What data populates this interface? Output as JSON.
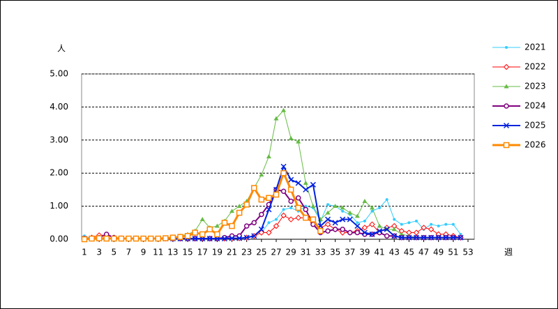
{
  "chart_data": {
    "type": "line",
    "x_label": "週",
    "y_label": "人",
    "x": [
      1,
      2,
      3,
      4,
      5,
      6,
      7,
      8,
      9,
      10,
      11,
      12,
      13,
      14,
      15,
      16,
      17,
      18,
      19,
      20,
      21,
      22,
      23,
      24,
      25,
      26,
      27,
      28,
      29,
      30,
      31,
      32,
      33,
      34,
      35,
      36,
      37,
      38,
      39,
      40,
      41,
      42,
      43,
      44,
      45,
      46,
      47,
      48,
      49,
      50,
      51,
      52
    ],
    "xlim": [
      1,
      53
    ],
    "xticks": [
      1,
      3,
      5,
      7,
      9,
      11,
      13,
      15,
      17,
      19,
      21,
      23,
      25,
      27,
      29,
      31,
      33,
      35,
      37,
      39,
      41,
      43,
      45,
      47,
      49,
      51,
      53
    ],
    "ylim": [
      0,
      5
    ],
    "yticks": [
      {
        "value": 0,
        "label": "0.00"
      },
      {
        "value": 1,
        "label": "1.00"
      },
      {
        "value": 2,
        "label": "2.00"
      },
      {
        "value": 3,
        "label": "3.00"
      },
      {
        "value": 4,
        "label": "4.00"
      },
      {
        "value": 5,
        "label": "5.00"
      }
    ],
    "grid": true,
    "legend": "right",
    "series": [
      {
        "name": "2021",
        "color": "#33ccff",
        "marker": "dot",
        "width": 1,
        "values": [
          0.1,
          0.02,
          0.02,
          0.02,
          0.02,
          0.02,
          0.02,
          0.02,
          0.02,
          0.02,
          0.02,
          0.02,
          0.02,
          0.02,
          0.02,
          0.02,
          0.02,
          0.02,
          0.02,
          0.02,
          0.03,
          0.03,
          0.05,
          0.1,
          0.2,
          0.5,
          0.6,
          0.9,
          0.95,
          0.85,
          1.0,
          0.95,
          0.55,
          1.05,
          1.0,
          0.85,
          0.75,
          0.5,
          0.55,
          0.85,
          0.95,
          1.2,
          0.6,
          0.45,
          0.5,
          0.55,
          0.3,
          0.45,
          0.4,
          0.45,
          0.45,
          0.15
        ]
      },
      {
        "name": "2022",
        "color": "#ff0000",
        "marker": "diamond",
        "width": 1,
        "values": [
          0.02,
          0.05,
          0.12,
          0.12,
          0.05,
          0.03,
          0.02,
          0.02,
          0.02,
          0.02,
          0.02,
          0.02,
          0.02,
          0.02,
          0.02,
          0.02,
          0.02,
          0.02,
          0.02,
          0.02,
          0.03,
          0.03,
          0.05,
          0.1,
          0.2,
          0.2,
          0.4,
          0.72,
          0.6,
          0.65,
          0.65,
          0.5,
          0.35,
          0.45,
          0.3,
          0.2,
          0.2,
          0.25,
          0.35,
          0.45,
          0.2,
          0.35,
          0.4,
          0.25,
          0.2,
          0.2,
          0.35,
          0.3,
          0.15,
          0.15,
          0.1,
          0.05
        ]
      },
      {
        "name": "2023",
        "color": "#66bb44",
        "marker": "triangle",
        "width": 1,
        "values": [
          0.02,
          0.02,
          0.02,
          0.02,
          0.02,
          0.02,
          0.02,
          0.05,
          0.02,
          0.02,
          0.02,
          0.02,
          0.05,
          0.1,
          0.15,
          0.25,
          0.6,
          0.35,
          0.4,
          0.55,
          0.85,
          1.0,
          1.15,
          1.55,
          1.95,
          2.5,
          3.65,
          3.9,
          3.05,
          2.95,
          1.7,
          1.0,
          0.6,
          0.8,
          1.0,
          0.95,
          0.8,
          0.7,
          1.15,
          0.95,
          0.4,
          0.3,
          0.3,
          0.15,
          0.1,
          0.05,
          0.05,
          0.05,
          0.05,
          0.05,
          0.05,
          0.05
        ]
      },
      {
        "name": "2024",
        "color": "#800080",
        "marker": "circle",
        "width": 2,
        "values": [
          0.02,
          0.02,
          0.05,
          0.15,
          0.05,
          0.02,
          0.02,
          0.02,
          0.02,
          0.02,
          0.02,
          0.02,
          0.02,
          0.02,
          0.02,
          0.02,
          0.02,
          0.02,
          0.02,
          0.05,
          0.1,
          0.1,
          0.4,
          0.5,
          0.75,
          1.05,
          1.5,
          1.45,
          1.15,
          1.25,
          0.9,
          0.45,
          0.2,
          0.25,
          0.3,
          0.3,
          0.2,
          0.2,
          0.15,
          0.15,
          0.2,
          0.1,
          0.1,
          0.05,
          0.05,
          0.05,
          0.05,
          0.05,
          0.05,
          0.05,
          0.05,
          0.05
        ]
      },
      {
        "name": "2025",
        "color": "#0022dd",
        "marker": "cross",
        "width": 2,
        "values": [
          0.02,
          0.02,
          0.02,
          0.02,
          0.02,
          0.02,
          0.02,
          0.02,
          0.02,
          0.02,
          0.02,
          0.02,
          0.02,
          0.02,
          0.02,
          0.02,
          0.02,
          0.02,
          0.02,
          0.02,
          0.03,
          0.03,
          0.05,
          0.1,
          0.3,
          0.9,
          1.5,
          2.2,
          1.8,
          1.7,
          1.5,
          1.65,
          0.4,
          0.6,
          0.5,
          0.6,
          0.6,
          0.4,
          0.2,
          0.15,
          0.25,
          0.3,
          0.1,
          0.05,
          0.05,
          0.05,
          0.05,
          0.05,
          0.05,
          0.05,
          0.05,
          0.05
        ]
      },
      {
        "name": "2026",
        "color": "#ff8800",
        "marker": "square",
        "width": 3,
        "values": [
          0,
          0.02,
          0.03,
          0.02,
          0.02,
          0.02,
          0.02,
          0.02,
          0.02,
          0.02,
          0.02,
          0.03,
          0.05,
          0.07,
          0.1,
          0.2,
          0.15,
          0.3,
          0.15,
          0.5,
          0.4,
          0.8,
          1.05,
          1.55,
          1.2,
          1.25,
          1.35,
          2.0,
          1.5,
          0.95,
          0.65,
          0.6,
          0.25,
          null,
          null,
          null,
          null,
          null,
          null,
          null,
          null,
          null,
          null,
          null,
          null,
          null,
          null,
          null,
          null,
          null,
          null,
          null
        ]
      }
    ]
  }
}
